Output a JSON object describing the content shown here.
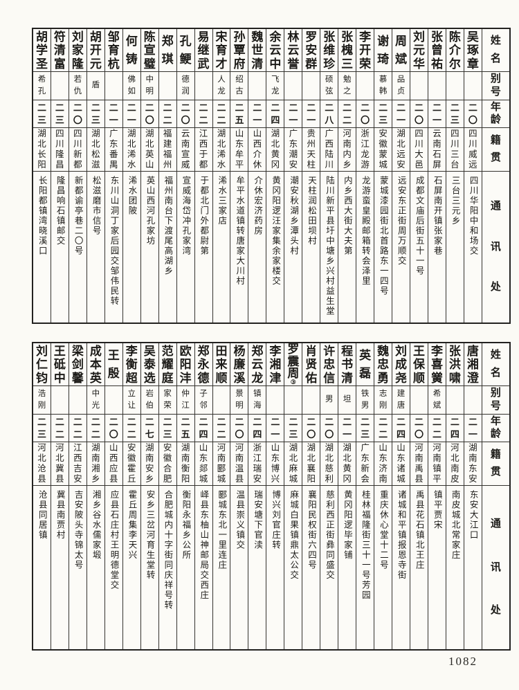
{
  "page": {
    "number": "1082"
  },
  "headers": {
    "name": "姓名",
    "alias": "别号",
    "age": "年龄",
    "native": "籍贯",
    "address": "通讯处"
  },
  "tables": {
    "top": {
      "entries_right_to_left": [
        {
          "name": "吴琢章",
          "alias": "",
          "age": "二〇",
          "native": "四川威远",
          "address": "四川华阳中和场交"
        },
        {
          "name": "陈介尔",
          "alias": "",
          "age": "二三",
          "native": "四川三台",
          "address": "三台三元乡"
        },
        {
          "name": "张曾祐",
          "alias": "",
          "age": "二一",
          "native": "云南石屏",
          "address": "石屏南开镇张家巷"
        },
        {
          "name": "刘元华",
          "alias": "",
          "age": "二〇",
          "native": "四川大邑",
          "address": "成都文庙后街五十一号"
        },
        {
          "name": "周斌",
          "alias": "品贞",
          "age": "二一",
          "native": "湖北远安",
          "address": "远安东正街周万顺交"
        },
        {
          "name": "谢琦",
          "alias": "慕韩",
          "age": "二三",
          "native": "安徽蒙城",
          "address": "蒙城漆园街北首路东一四号"
        },
        {
          "name": "李开荣",
          "alias": "",
          "age": "二〇",
          "native": "浙江龙游",
          "address": "龙游蛮皇殿邮箱转会泽里"
        },
        {
          "name": "张槐三",
          "alias": "勉之",
          "age": "二二",
          "native": "河南内乡",
          "address": "内乡西大街大夫第"
        },
        {
          "name": "张维珍",
          "alias": "硕弦",
          "age": "二八",
          "native": "广西陆川",
          "address": "陆川新平县圩中塘乡兴村益生堂"
        },
        {
          "name": "罗安群",
          "alias": "",
          "age": "二一",
          "native": "贵州天柱",
          "address": "天柱润松田坝村"
        },
        {
          "name": "林云誉",
          "alias": "",
          "age": "二一",
          "native": "广东潮安",
          "address": "潮安秋湖乡潭头村"
        },
        {
          "name": "余云中",
          "alias": "飞龙",
          "age": "二四",
          "native": "湖北黄冈",
          "address": "黄冈阳逻汪家集余家楼交"
        },
        {
          "name": "魏世清",
          "alias": "",
          "age": "二一",
          "native": "山西介休",
          "address": "介休宏济药房"
        },
        {
          "name": "孙覃府",
          "alias": "绍古",
          "age": "二五",
          "native": "山东牟平",
          "address": "牟平水道镇转唐家大川村"
        },
        {
          "name": "宋育才",
          "alias": "人龙",
          "age": "二二",
          "native": "湖北浠水",
          "address": "浠水三家店"
        },
        {
          "name": "易继武",
          "alias": "",
          "age": "二二",
          "native": "江西于都",
          "address": "于都北门外都尉第"
        },
        {
          "name": "孔鲠",
          "alias": "德润",
          "age": "二〇",
          "native": "云南宣威",
          "address": "宣威海岱冲孔家湾"
        },
        {
          "name": "郑琪",
          "alias": "",
          "age": "二二",
          "native": "福建福州",
          "address": "福州南台下渡尾高湖乡"
        },
        {
          "name": "陈宣璧",
          "alias": "中明",
          "age": "二〇",
          "native": "湖北英山",
          "address": "英山西河孔家坊"
        },
        {
          "name": "何铸",
          "alias": "佛如",
          "age": "二一",
          "native": "湖北浠水",
          "address": "浠水团陂"
        },
        {
          "name": "邹育杭",
          "alias": "",
          "age": "二一",
          "native": "广东番禺",
          "address": "东川山洞丁家后园交邹伟民转"
        },
        {
          "name": "胡开元",
          "alias": "盾",
          "age": "二三",
          "native": "湖北松滋",
          "address": "松滋磨市信号"
        },
        {
          "name": "刘家隆",
          "alias": "若仇",
          "age": "二〇",
          "native": "四川新都",
          "address": "新都谕亭巷二〇号"
        },
        {
          "name": "符清富",
          "alias": "",
          "age": "二三",
          "native": "四川隆昌",
          "address": "隆昌响石镇邮交"
        },
        {
          "name": "胡学圣",
          "alias": "希孔",
          "age": "二三",
          "native": "湖北长阳",
          "address": "长阳都镇湾晓溪口"
        }
      ]
    },
    "bottom": {
      "entries_right_to_left": [
        {
          "name": "唐湘澄",
          "alias": "",
          "age": "二一",
          "native": "湖南东安",
          "address": "东安大江口"
        },
        {
          "name": "张洪啸",
          "alias": "",
          "age": "二四",
          "native": "河北南皮",
          "address": "南皮城北常家庄"
        },
        {
          "name": "李喜黉",
          "alias": "希斌",
          "age": "二二",
          "native": "河南镇平",
          "address": "镇平贾宋"
        },
        {
          "name": "王保顺",
          "alias": "",
          "age": "二〇",
          "native": "河南禹县",
          "address": "禹县花石镇北王庄"
        },
        {
          "name": "刘成尧",
          "alias": "建唐",
          "age": "二四",
          "native": "山东诸城",
          "address": "诸城和平镇报恩寺街"
        },
        {
          "name": "魏忠勇",
          "alias": "志刚",
          "age": "二二",
          "native": "山东济南",
          "address": "重庆休心堂十二号"
        },
        {
          "name": "英磊",
          "alias": "铁男",
          "age": "二三",
          "native": "广东新会",
          "address": "桂林福隆街三十一号芳园"
        },
        {
          "name": "程书清",
          "alias": "坦",
          "age": "二一",
          "native": "湖北黄冈",
          "address": "黄冈阳逻毕家铺"
        },
        {
          "name": "许忠信",
          "alias": "男",
          "age": "二〇",
          "native": "湖北慈利",
          "address": "慈利西正街彝同盛交"
        },
        {
          "name": "肖贤佑",
          "alias": "",
          "age": "二〇",
          "native": "湖北襄阳",
          "address": "襄阳民权街六四号"
        },
        {
          "name": "罗震周",
          "note": "③",
          "alias": "",
          "age": "二三",
          "native": "湖北麻城",
          "address": "麻城白果镇鼎太公交"
        },
        {
          "name": "李湘津",
          "alias": "",
          "age": "二一",
          "native": "山东博兴",
          "address": "博兴刘官庄转"
        },
        {
          "name": "郑云龙",
          "alias": "镇海",
          "age": "二四",
          "native": "浙江瑞安",
          "address": "瑞安塘下官渎"
        },
        {
          "name": "杨廉溪",
          "alias": "景明",
          "age": "二〇",
          "native": "河南温县",
          "address": "温县崇义镇交"
        },
        {
          "name": "田来顺",
          "alias": "",
          "age": "二二",
          "native": "河南郾城",
          "address": "郾城东北一里连庄"
        },
        {
          "name": "郑永德",
          "alias": "子邻",
          "age": "二四",
          "native": "山东郯城",
          "address": "峄县东柚山神邮局交西庄"
        },
        {
          "name": "欧阳沣",
          "alias": "仲江",
          "age": "二五",
          "native": "湖南衡阳",
          "address": "衡阳永福乡公所"
        },
        {
          "name": "范耀庭",
          "alias": "家荣",
          "age": "二三",
          "native": "安徽合肥",
          "address": "合肥城内十字街同庆祥号转"
        },
        {
          "name": "吴泰选",
          "alias": "岩伯",
          "age": "二七",
          "native": "湖南安乡",
          "address": "安乡三岔河育生堂转"
        },
        {
          "name": "李衡超",
          "alias": "立让",
          "age": "二二",
          "native": "安徽霍丘",
          "address": "霍丘周集李天兴"
        },
        {
          "name": "王殷",
          "alias": "",
          "age": "二〇",
          "native": "山西应县",
          "address": "应县石庄村王明德堂交"
        },
        {
          "name": "成本英",
          "alias": "中光",
          "age": "二二",
          "native": "湖南湘乡",
          "address": "湘乡谷水儒家塅"
        },
        {
          "name": "梁剑馨",
          "alias": "",
          "age": "二二",
          "native": "江西吉安",
          "address": "吉安陂头寺锦太号"
        },
        {
          "name": "王砥中",
          "alias": "",
          "age": "二二",
          "native": "河北冀县",
          "address": "冀县南贾村"
        },
        {
          "name": "刘仁钧",
          "alias": "浩刚",
          "age": "二三",
          "native": "河北沧县",
          "address": "沧县同居镇"
        }
      ]
    }
  }
}
